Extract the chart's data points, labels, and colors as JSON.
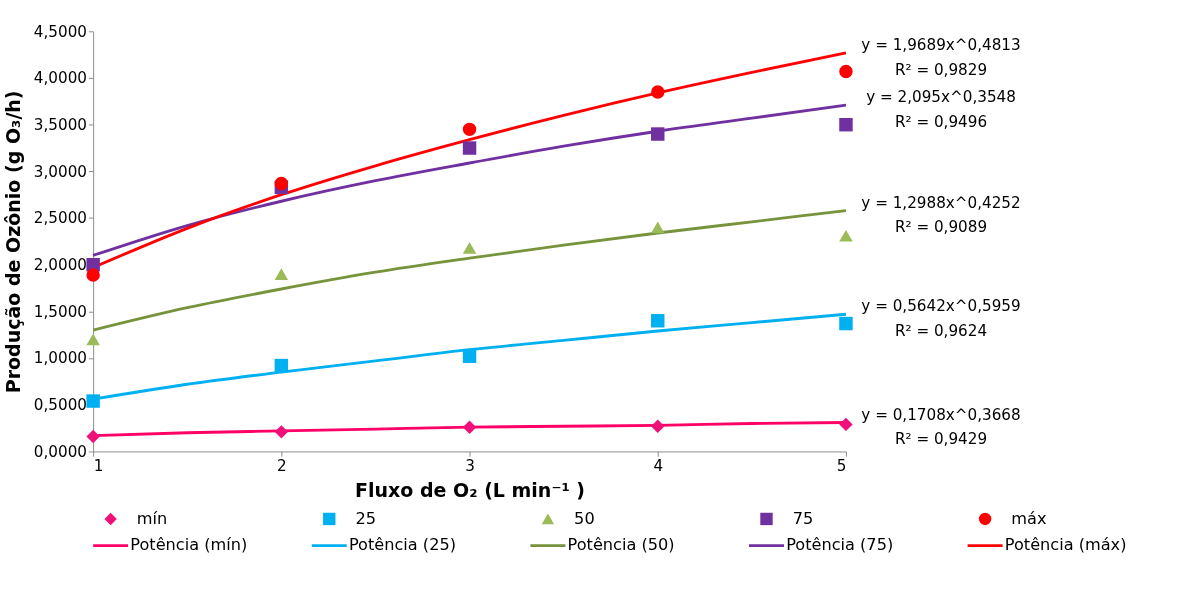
{
  "chart_data": {
    "type": "scatter",
    "xlabel": "Fluxo de O₂ (L min⁻¹ )",
    "ylabel": "Produção de Ozônio (g O₃/h)",
    "xlim": [
      1,
      5
    ],
    "xticks": [
      1,
      2,
      3,
      4,
      5
    ],
    "ylim": [
      0,
      4.5
    ],
    "yticks": [
      {
        "value": 0,
        "label": "0,0000"
      },
      {
        "value": 0.5,
        "label": "0,5000"
      },
      {
        "value": 1,
        "label": "1,0000"
      },
      {
        "value": 1.5,
        "label": "1,5000"
      },
      {
        "value": 2,
        "label": "2,0000"
      },
      {
        "value": 2.5,
        "label": "2,5000"
      },
      {
        "value": 3,
        "label": "3,0000"
      },
      {
        "value": 3.5,
        "label": "3,5000"
      },
      {
        "value": 4,
        "label": "4,0000"
      },
      {
        "value": 4.5,
        "label": "4,5000"
      }
    ],
    "grid": false,
    "legend": "bottom",
    "series": [
      {
        "name": "mín",
        "marker": "diamond",
        "color": "#f0107a",
        "x": [
          1,
          2,
          3,
          4,
          5
        ],
        "values": [
          0.16,
          0.21,
          0.26,
          0.27,
          0.29
        ]
      },
      {
        "name": "25",
        "marker": "square",
        "color": "#00b0f0",
        "x": [
          1,
          2,
          3,
          4,
          5
        ],
        "values": [
          0.54,
          0.92,
          1.02,
          1.4,
          1.37
        ]
      },
      {
        "name": "50",
        "marker": "triangle",
        "color": "#9bbb59",
        "x": [
          1,
          2,
          3,
          4,
          5
        ],
        "values": [
          1.2,
          1.9,
          2.18,
          2.4,
          2.31
        ]
      },
      {
        "name": "75",
        "marker": "square",
        "color": "#7030a0",
        "x": [
          1,
          2,
          3,
          4,
          5
        ],
        "values": [
          2.0,
          2.83,
          3.25,
          3.4,
          3.5
        ]
      },
      {
        "name": "máx",
        "marker": "circle",
        "color": "#ff0000",
        "x": [
          1,
          2,
          3,
          4,
          5
        ],
        "values": [
          1.89,
          2.87,
          3.45,
          3.85,
          4.07
        ]
      },
      {
        "name": "Potência (mín)",
        "type": "line",
        "marker": "none",
        "color": "#ff0066",
        "x": [
          1,
          1.5,
          2,
          2.5,
          3,
          3.5,
          4,
          4.5,
          5
        ],
        "values": [
          0.17,
          0.2,
          0.22,
          0.24,
          0.26,
          0.27,
          0.28,
          0.3,
          0.31
        ]
      },
      {
        "name": "Potência (25)",
        "type": "line",
        "marker": "none",
        "color": "#00b0f0",
        "x": [
          1,
          1.5,
          2,
          2.5,
          3,
          3.5,
          4,
          4.5,
          5
        ],
        "values": [
          0.56,
          0.72,
          0.85,
          0.97,
          1.09,
          1.19,
          1.29,
          1.38,
          1.47
        ]
      },
      {
        "name": "Potência (50)",
        "type": "line",
        "marker": "none",
        "color": "#77933c",
        "x": [
          1,
          1.5,
          2,
          2.5,
          3,
          3.5,
          4,
          4.5,
          5
        ],
        "values": [
          1.3,
          1.54,
          1.74,
          1.92,
          2.07,
          2.21,
          2.34,
          2.46,
          2.58
        ]
      },
      {
        "name": "Potência (75)",
        "type": "line",
        "marker": "none",
        "color": "#7030a0",
        "x": [
          1,
          1.5,
          2,
          2.5,
          3,
          3.5,
          4,
          4.5,
          5
        ],
        "values": [
          2.1,
          2.42,
          2.68,
          2.9,
          3.09,
          3.27,
          3.43,
          3.57,
          3.71
        ]
      },
      {
        "name": "Potência (máx)",
        "type": "line",
        "marker": "none",
        "color": "#ff0000",
        "x": [
          1,
          1.5,
          2,
          2.5,
          3,
          3.5,
          4,
          4.5,
          5
        ],
        "values": [
          1.97,
          2.39,
          2.75,
          3.06,
          3.34,
          3.6,
          3.84,
          4.06,
          4.27
        ]
      }
    ],
    "annotations": [
      "y = 1,9689x^0,4813",
      "R² = 0,9829",
      "y = 2,095x^0,3548",
      "R² = 0,9496",
      "y = 1,2988x^0,4252",
      "R² = 0,9089",
      "y = 0,5642x^0,5959",
      "R² = 0,9624",
      "y = 0,1708x^0,3668",
      "R² = 0,9429"
    ]
  }
}
